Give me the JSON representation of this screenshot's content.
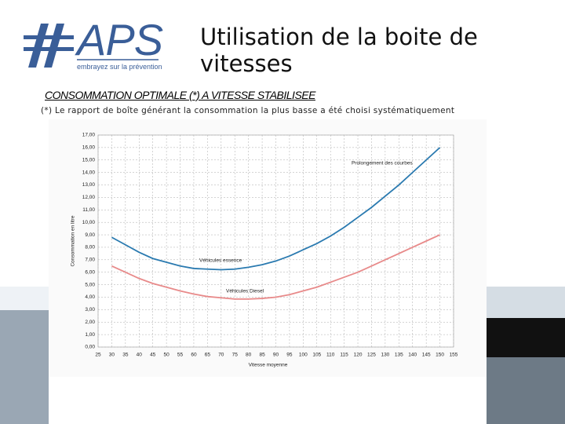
{
  "logo": {
    "name": "APS",
    "tagline": "embrayez sur la prévention"
  },
  "header": {
    "title": "Utilisation de la boite de vitesses",
    "heading": "CONSOMMATION OPTIMALE (*) A VITESSE STABILISEE",
    "note": "(*) Le rapport de boîte générant la consommation la plus basse a été choisi systématiquement"
  },
  "chart_data": {
    "type": "line",
    "x_label": "Vitesse moyenne",
    "y_label": "Consommation en litre",
    "annotation": "Prolongement des courbes",
    "x": [
      30,
      35,
      40,
      45,
      50,
      55,
      60,
      65,
      70,
      75,
      80,
      85,
      90,
      95,
      100,
      105,
      110,
      115,
      120,
      125,
      130,
      135,
      140,
      145,
      150
    ],
    "series": [
      {
        "name": "Véhicules essence",
        "color": "#2a7ab0",
        "values": [
          8.8,
          8.2,
          7.6,
          7.1,
          6.8,
          6.5,
          6.3,
          6.25,
          6.2,
          6.25,
          6.4,
          6.6,
          6.9,
          7.3,
          7.8,
          8.3,
          8.9,
          9.6,
          10.4,
          11.2,
          12.1,
          13.0,
          14.0,
          15.0,
          16.0
        ]
      },
      {
        "name": "Véhicules Diesel",
        "color": "#e88a8a",
        "values": [
          6.5,
          6.0,
          5.5,
          5.1,
          4.8,
          4.5,
          4.25,
          4.05,
          3.95,
          3.85,
          3.85,
          3.9,
          4.0,
          4.2,
          4.5,
          4.8,
          5.2,
          5.6,
          6.0,
          6.5,
          7.0,
          7.5,
          8.0,
          8.5,
          9.0
        ]
      }
    ],
    "xlim": [
      25,
      155
    ],
    "xticks": [
      25,
      30,
      35,
      40,
      45,
      50,
      55,
      60,
      65,
      70,
      75,
      80,
      85,
      90,
      95,
      100,
      105,
      110,
      115,
      120,
      125,
      130,
      135,
      140,
      145,
      150,
      155
    ],
    "ylim": [
      0,
      17
    ],
    "yticks": [
      {
        "value": 0,
        "label": "0,00"
      },
      {
        "value": 1,
        "label": "1,00"
      },
      {
        "value": 2,
        "label": "2,00"
      },
      {
        "value": 3,
        "label": "3,00"
      },
      {
        "value": 4,
        "label": "4,00"
      },
      {
        "value": 5,
        "label": "5,00"
      },
      {
        "value": 6,
        "label": "6,00"
      },
      {
        "value": 7,
        "label": "7,00"
      },
      {
        "value": 8,
        "label": "8,00"
      },
      {
        "value": 9,
        "label": "9,00"
      },
      {
        "value": 10,
        "label": "10,00"
      },
      {
        "value": 11,
        "label": "11,00"
      },
      {
        "value": 12,
        "label": "12,00"
      },
      {
        "value": 13,
        "label": "13,00"
      },
      {
        "value": 14,
        "label": "14,00"
      },
      {
        "value": 15,
        "label": "15,00"
      },
      {
        "value": 16,
        "label": "16,00"
      },
      {
        "value": 17,
        "label": "17,00"
      }
    ],
    "grid": true
  }
}
